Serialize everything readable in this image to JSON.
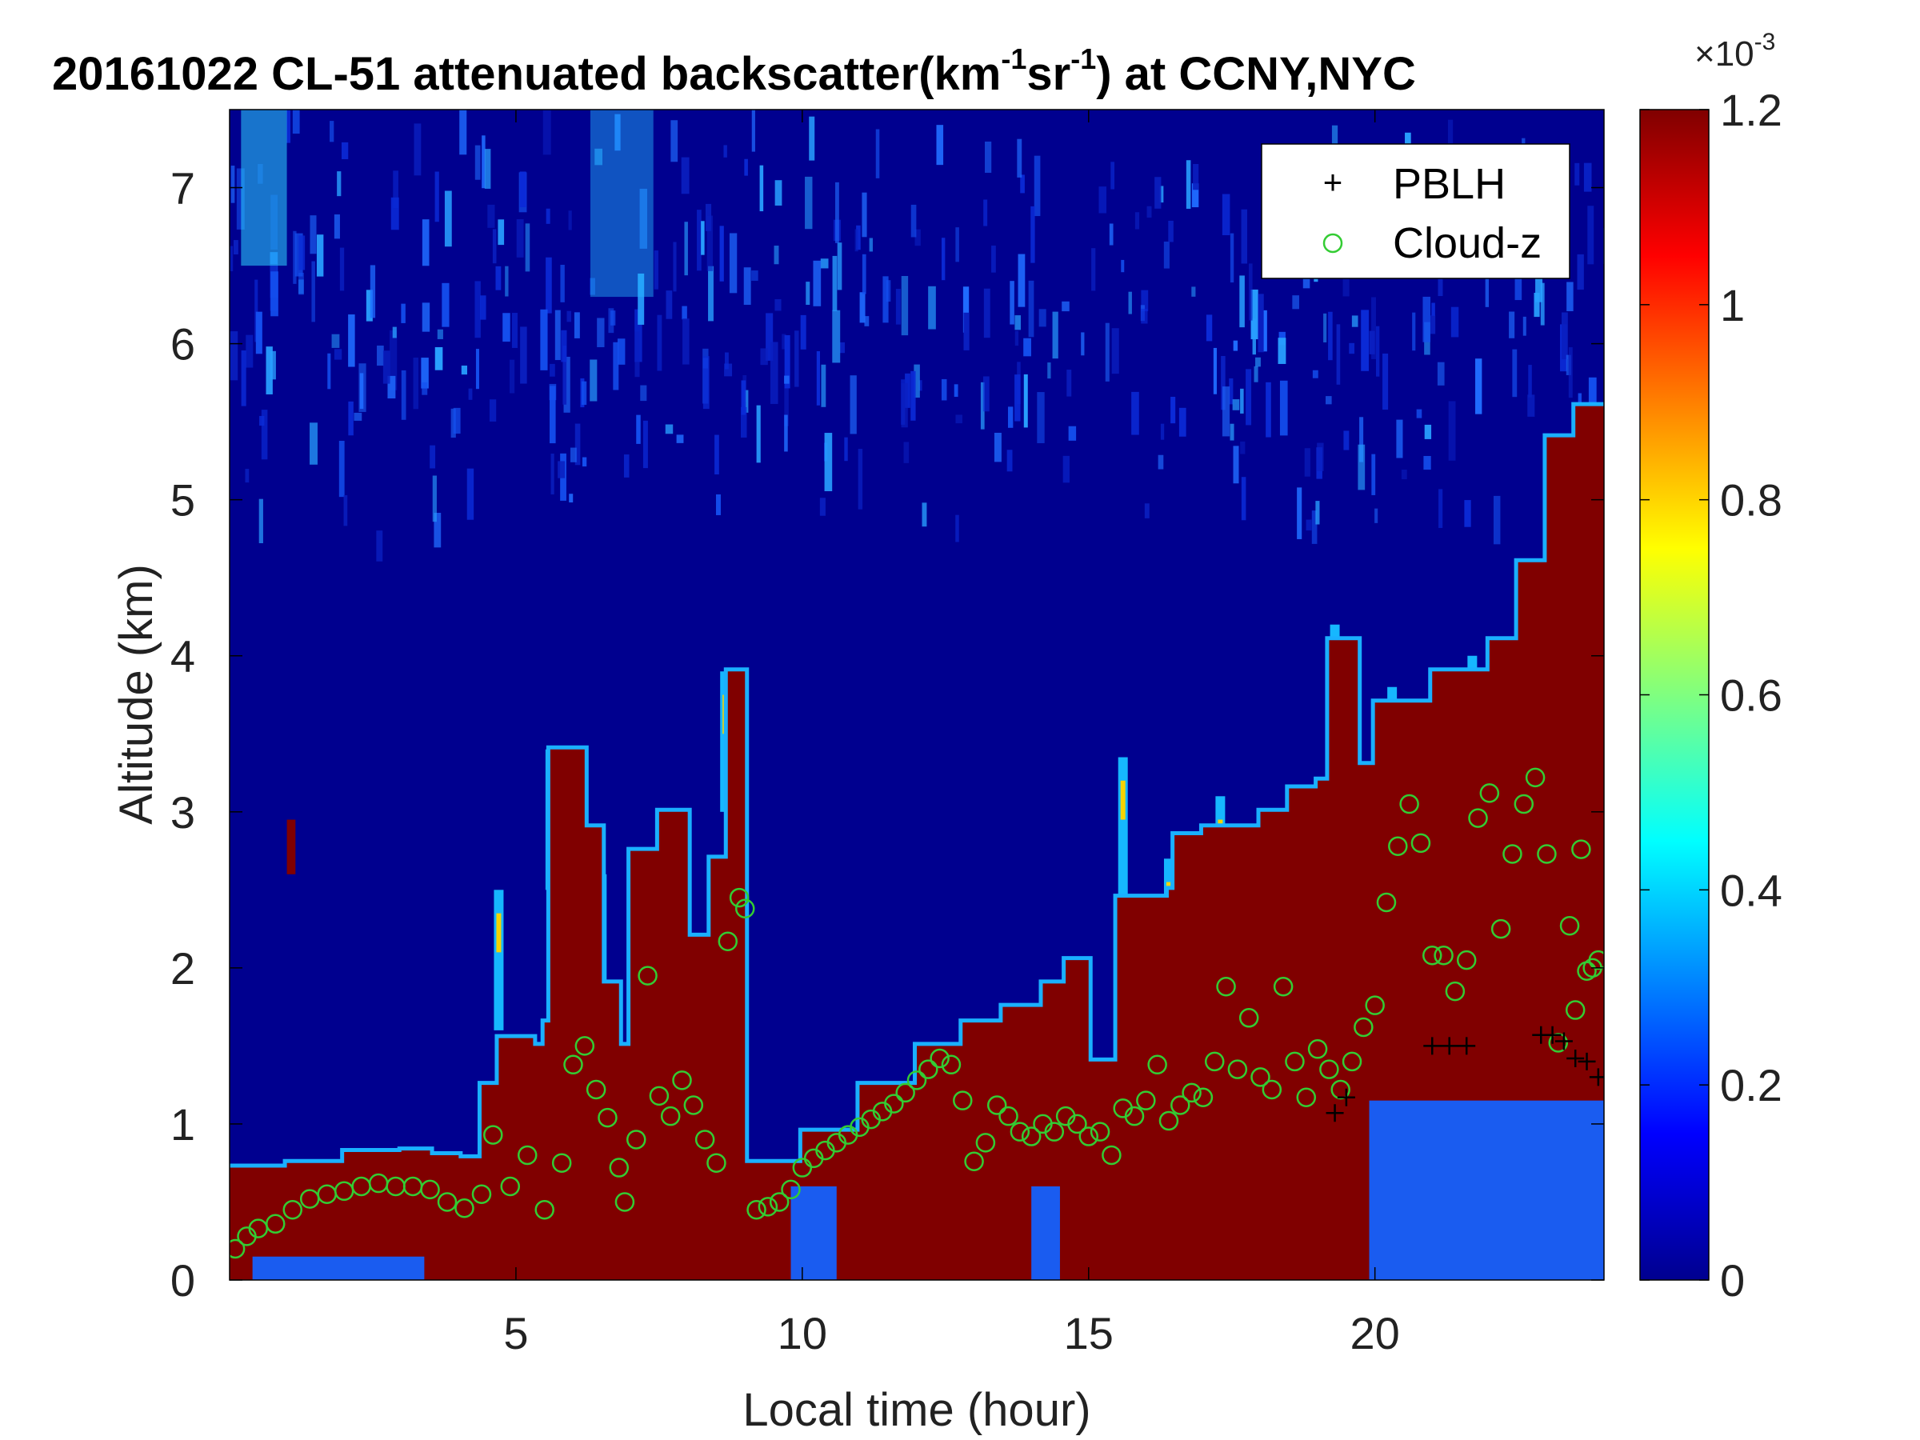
{
  "chart_data": {
    "type": "heatmap",
    "title_parts": [
      "20161022  CL-51 attenuated backscatter(km",
      "-1",
      "sr",
      "-1",
      ") at CCNY,NYC"
    ],
    "xlabel": "Local time (hour)",
    "ylabel": "Altitude (km)",
    "xlim": [
      0,
      24
    ],
    "ylim": [
      0,
      7.5
    ],
    "xticks": [
      5,
      10,
      15,
      20
    ],
    "yticks": [
      0,
      1,
      2,
      3,
      4,
      5,
      6,
      7
    ],
    "colorbar": {
      "range": [
        0,
        0.0012
      ],
      "tick_values": [
        0,
        0.2,
        0.4,
        0.6,
        0.8,
        1,
        1.2
      ],
      "tick_labels": [
        "0",
        "0.2",
        "0.4",
        "0.6",
        "0.8",
        "1",
        "1.2"
      ],
      "exponent_label": "×10",
      "exponent_power": "-3",
      "colormap": "jet"
    },
    "legend": {
      "position": "top-right",
      "entries": [
        {
          "label": "PBLH",
          "marker": "+",
          "color": "#000000"
        },
        {
          "label": "Cloud-z",
          "marker": "o",
          "color": "#33cc33"
        }
      ]
    },
    "colors": {
      "saturated": "#800000",
      "background": "#00008f",
      "faint": "#1a3cd6",
      "cloud_marker": "#33cc33",
      "pblh_marker": "#000000"
    },
    "backscatter_top_km": [
      {
        "t": 0.0,
        "z": 0.72
      },
      {
        "t": 1.0,
        "z": 0.75
      },
      {
        "t": 2.0,
        "z": 0.82
      },
      {
        "t": 3.0,
        "z": 0.83
      },
      {
        "t": 3.5,
        "z": 0.8
      },
      {
        "t": 4.0,
        "z": 0.78
      },
      {
        "t": 4.4,
        "z": 1.25
      },
      {
        "t": 4.7,
        "z": 1.55
      },
      {
        "t": 5.3,
        "z": 1.5
      },
      {
        "t": 5.5,
        "z": 1.65
      },
      {
        "t": 5.6,
        "z": 3.4
      },
      {
        "t": 6.2,
        "z": 2.9
      },
      {
        "t": 6.5,
        "z": 1.9
      },
      {
        "t": 6.8,
        "z": 1.5
      },
      {
        "t": 7.0,
        "z": 2.75
      },
      {
        "t": 7.5,
        "z": 3.0
      },
      {
        "t": 8.0,
        "z": 2.2
      },
      {
        "t": 8.4,
        "z": 2.7
      },
      {
        "t": 8.7,
        "z": 3.9
      },
      {
        "t": 9.0,
        "z": 0.75
      },
      {
        "t": 10.0,
        "z": 0.95
      },
      {
        "t": 11.0,
        "z": 1.25
      },
      {
        "t": 12.0,
        "z": 1.5
      },
      {
        "t": 12.8,
        "z": 1.65
      },
      {
        "t": 13.5,
        "z": 1.75
      },
      {
        "t": 14.2,
        "z": 1.9
      },
      {
        "t": 14.6,
        "z": 2.05
      },
      {
        "t": 15.0,
        "z": 1.4
      },
      {
        "t": 15.5,
        "z": 2.45
      },
      {
        "t": 16.4,
        "z": 2.5
      },
      {
        "t": 16.5,
        "z": 2.85
      },
      {
        "t": 17.0,
        "z": 2.9
      },
      {
        "t": 18.0,
        "z": 3.0
      },
      {
        "t": 18.5,
        "z": 3.15
      },
      {
        "t": 19.0,
        "z": 3.2
      },
      {
        "t": 19.2,
        "z": 4.1
      },
      {
        "t": 19.7,
        "z": 3.3
      },
      {
        "t": 20.0,
        "z": 3.7
      },
      {
        "t": 21.0,
        "z": 3.9
      },
      {
        "t": 22.0,
        "z": 4.1
      },
      {
        "t": 22.5,
        "z": 4.6
      },
      {
        "t": 23.0,
        "z": 5.4
      },
      {
        "t": 23.5,
        "z": 5.6
      },
      {
        "t": 24.0,
        "z": 5.6
      }
    ],
    "spikes": [
      {
        "t": 4.7,
        "z": 2.5
      },
      {
        "t": 5.6,
        "z": 3.4
      },
      {
        "t": 6.5,
        "z": 2.6
      },
      {
        "t": 8.65,
        "z": 3.9
      },
      {
        "t": 15.6,
        "z": 3.35
      },
      {
        "t": 16.4,
        "z": 2.7
      },
      {
        "t": 17.3,
        "z": 3.1
      },
      {
        "t": 19.3,
        "z": 4.2
      },
      {
        "t": 20.3,
        "z": 3.8
      },
      {
        "t": 21.7,
        "z": 4.0
      },
      {
        "t": 22.8,
        "z": 4.6
      },
      {
        "t": 23.6,
        "z": 5.6
      }
    ],
    "low_layer_blocks": [
      {
        "t0": 0.4,
        "t1": 3.4,
        "z0": 0.0,
        "z1": 0.15
      },
      {
        "t0": 9.8,
        "t1": 10.6,
        "z0": 0.0,
        "z1": 0.6
      },
      {
        "t0": 14.0,
        "t1": 14.5,
        "z0": 0.0,
        "z1": 0.6
      },
      {
        "t0": 19.9,
        "t1": 24.0,
        "z0": 0.0,
        "z1": 1.15
      }
    ],
    "upper_noise_band": {
      "z0": 5.7,
      "z1": 7.5
    },
    "cloud_z": [
      {
        "t": 0.1,
        "z": 0.2
      },
      {
        "t": 0.3,
        "z": 0.28
      },
      {
        "t": 0.5,
        "z": 0.33
      },
      {
        "t": 0.8,
        "z": 0.36
      },
      {
        "t": 1.1,
        "z": 0.45
      },
      {
        "t": 1.4,
        "z": 0.52
      },
      {
        "t": 1.7,
        "z": 0.55
      },
      {
        "t": 2.0,
        "z": 0.57
      },
      {
        "t": 2.3,
        "z": 0.6
      },
      {
        "t": 2.6,
        "z": 0.62
      },
      {
        "t": 2.9,
        "z": 0.6
      },
      {
        "t": 3.2,
        "z": 0.6
      },
      {
        "t": 3.5,
        "z": 0.58
      },
      {
        "t": 3.8,
        "z": 0.5
      },
      {
        "t": 4.1,
        "z": 0.46
      },
      {
        "t": 4.4,
        "z": 0.55
      },
      {
        "t": 4.6,
        "z": 0.93
      },
      {
        "t": 4.9,
        "z": 0.6
      },
      {
        "t": 5.2,
        "z": 0.8
      },
      {
        "t": 5.5,
        "z": 0.45
      },
      {
        "t": 5.8,
        "z": 0.75
      },
      {
        "t": 6.0,
        "z": 1.38
      },
      {
        "t": 6.2,
        "z": 1.5
      },
      {
        "t": 6.4,
        "z": 1.22
      },
      {
        "t": 6.6,
        "z": 1.04
      },
      {
        "t": 6.8,
        "z": 0.72
      },
      {
        "t": 6.9,
        "z": 0.5
      },
      {
        "t": 7.1,
        "z": 0.9
      },
      {
        "t": 7.3,
        "z": 1.95
      },
      {
        "t": 7.5,
        "z": 1.18
      },
      {
        "t": 7.7,
        "z": 1.05
      },
      {
        "t": 7.9,
        "z": 1.28
      },
      {
        "t": 8.1,
        "z": 1.12
      },
      {
        "t": 8.3,
        "z": 0.9
      },
      {
        "t": 8.5,
        "z": 0.75
      },
      {
        "t": 8.7,
        "z": 2.17
      },
      {
        "t": 8.9,
        "z": 2.45
      },
      {
        "t": 9.0,
        "z": 2.38
      },
      {
        "t": 9.2,
        "z": 0.45
      },
      {
        "t": 9.4,
        "z": 0.47
      },
      {
        "t": 9.6,
        "z": 0.5
      },
      {
        "t": 9.8,
        "z": 0.58
      },
      {
        "t": 10.0,
        "z": 0.72
      },
      {
        "t": 10.2,
        "z": 0.78
      },
      {
        "t": 10.4,
        "z": 0.83
      },
      {
        "t": 10.6,
        "z": 0.88
      },
      {
        "t": 10.8,
        "z": 0.93
      },
      {
        "t": 11.0,
        "z": 0.98
      },
      {
        "t": 11.2,
        "z": 1.03
      },
      {
        "t": 11.4,
        "z": 1.08
      },
      {
        "t": 11.6,
        "z": 1.13
      },
      {
        "t": 11.8,
        "z": 1.2
      },
      {
        "t": 12.0,
        "z": 1.28
      },
      {
        "t": 12.2,
        "z": 1.35
      },
      {
        "t": 12.4,
        "z": 1.42
      },
      {
        "t": 12.6,
        "z": 1.38
      },
      {
        "t": 12.8,
        "z": 1.15
      },
      {
        "t": 13.0,
        "z": 0.76
      },
      {
        "t": 13.2,
        "z": 0.88
      },
      {
        "t": 13.4,
        "z": 1.12
      },
      {
        "t": 13.6,
        "z": 1.05
      },
      {
        "t": 13.8,
        "z": 0.95
      },
      {
        "t": 14.0,
        "z": 0.92
      },
      {
        "t": 14.2,
        "z": 1.0
      },
      {
        "t": 14.4,
        "z": 0.95
      },
      {
        "t": 14.6,
        "z": 1.05
      },
      {
        "t": 14.8,
        "z": 1.0
      },
      {
        "t": 15.0,
        "z": 0.92
      },
      {
        "t": 15.2,
        "z": 0.95
      },
      {
        "t": 15.4,
        "z": 0.8
      },
      {
        "t": 15.6,
        "z": 1.1
      },
      {
        "t": 15.8,
        "z": 1.05
      },
      {
        "t": 16.0,
        "z": 1.15
      },
      {
        "t": 16.2,
        "z": 1.38
      },
      {
        "t": 16.4,
        "z": 1.02
      },
      {
        "t": 16.6,
        "z": 1.12
      },
      {
        "t": 16.8,
        "z": 1.2
      },
      {
        "t": 17.0,
        "z": 1.17
      },
      {
        "t": 17.2,
        "z": 1.4
      },
      {
        "t": 17.4,
        "z": 1.88
      },
      {
        "t": 17.6,
        "z": 1.35
      },
      {
        "t": 17.8,
        "z": 1.68
      },
      {
        "t": 18.0,
        "z": 1.3
      },
      {
        "t": 18.2,
        "z": 1.22
      },
      {
        "t": 18.4,
        "z": 1.88
      },
      {
        "t": 18.6,
        "z": 1.4
      },
      {
        "t": 18.8,
        "z": 1.17
      },
      {
        "t": 19.0,
        "z": 1.48
      },
      {
        "t": 19.2,
        "z": 1.35
      },
      {
        "t": 19.4,
        "z": 1.22
      },
      {
        "t": 19.6,
        "z": 1.4
      },
      {
        "t": 19.8,
        "z": 1.62
      },
      {
        "t": 20.0,
        "z": 1.76
      },
      {
        "t": 20.2,
        "z": 2.42
      },
      {
        "t": 20.4,
        "z": 2.78
      },
      {
        "t": 20.6,
        "z": 3.05
      },
      {
        "t": 20.8,
        "z": 2.8
      },
      {
        "t": 21.0,
        "z": 2.08
      },
      {
        "t": 21.2,
        "z": 2.08
      },
      {
        "t": 21.4,
        "z": 1.85
      },
      {
        "t": 21.6,
        "z": 2.05
      },
      {
        "t": 21.8,
        "z": 2.96
      },
      {
        "t": 22.0,
        "z": 3.12
      },
      {
        "t": 22.2,
        "z": 2.25
      },
      {
        "t": 22.4,
        "z": 2.73
      },
      {
        "t": 22.6,
        "z": 3.05
      },
      {
        "t": 22.8,
        "z": 3.22
      },
      {
        "t": 23.0,
        "z": 2.73
      },
      {
        "t": 23.2,
        "z": 1.52
      },
      {
        "t": 23.4,
        "z": 2.27
      },
      {
        "t": 23.5,
        "z": 1.73
      },
      {
        "t": 23.6,
        "z": 2.76
      },
      {
        "t": 23.7,
        "z": 1.98
      },
      {
        "t": 23.8,
        "z": 2.0
      },
      {
        "t": 23.9,
        "z": 2.05
      }
    ],
    "pblh": [
      {
        "t": 19.3,
        "z": 1.07
      },
      {
        "t": 19.5,
        "z": 1.17
      },
      {
        "t": 21.0,
        "z": 1.5
      },
      {
        "t": 21.3,
        "z": 1.5
      },
      {
        "t": 21.6,
        "z": 1.5
      },
      {
        "t": 22.9,
        "z": 1.57
      },
      {
        "t": 23.1,
        "z": 1.57
      },
      {
        "t": 23.3,
        "z": 1.53
      },
      {
        "t": 23.5,
        "z": 1.42
      },
      {
        "t": 23.7,
        "z": 1.4
      },
      {
        "t": 23.9,
        "z": 1.3
      }
    ]
  }
}
